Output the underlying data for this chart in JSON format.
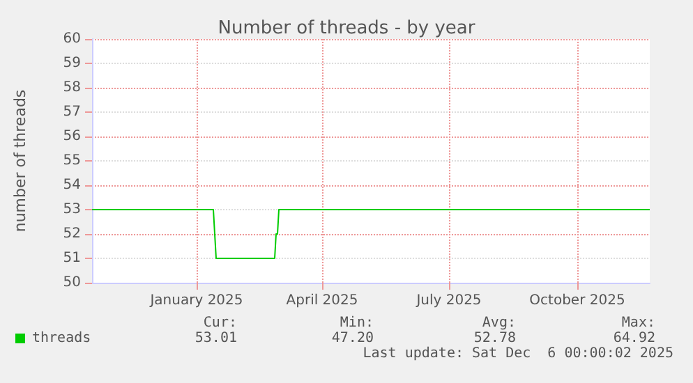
{
  "chart_data": {
    "type": "line",
    "title": "Number of threads - by year",
    "ylabel": "number of threads",
    "x": [
      "2024-10-18",
      "2025-01-13",
      "2025-01-15",
      "2025-02-26",
      "2025-02-27",
      "2025-02-28",
      "2025-03-01",
      "2025-11-22"
    ],
    "series": [
      {
        "name": "threads",
        "color": "#00cc00",
        "values": [
          53,
          53,
          51,
          51,
          52,
          52,
          53,
          53
        ]
      }
    ],
    "xlim": [
      "2024-10-18",
      "2025-11-22"
    ],
    "xticks": [
      {
        "value": "2025-01-01",
        "label": "January 2025"
      },
      {
        "value": "2025-04-01",
        "label": "April 2025"
      },
      {
        "value": "2025-07-01",
        "label": "July 2025"
      },
      {
        "value": "2025-10-01",
        "label": "October 2025"
      }
    ],
    "ylim": [
      50,
      60
    ],
    "yticks": [
      50,
      51,
      52,
      53,
      54,
      55,
      56,
      57,
      58,
      59,
      60
    ],
    "grid": true,
    "legend": "bottom left",
    "marker": "none",
    "line_style": "solid",
    "annotations": [
      "Cur:",
      "Min:",
      "Avg:",
      "Max:",
      "53.01",
      "47.20",
      "52.78",
      "64.92",
      "Last update: Sat Dec  6 00:00:02 2025"
    ]
  }
}
